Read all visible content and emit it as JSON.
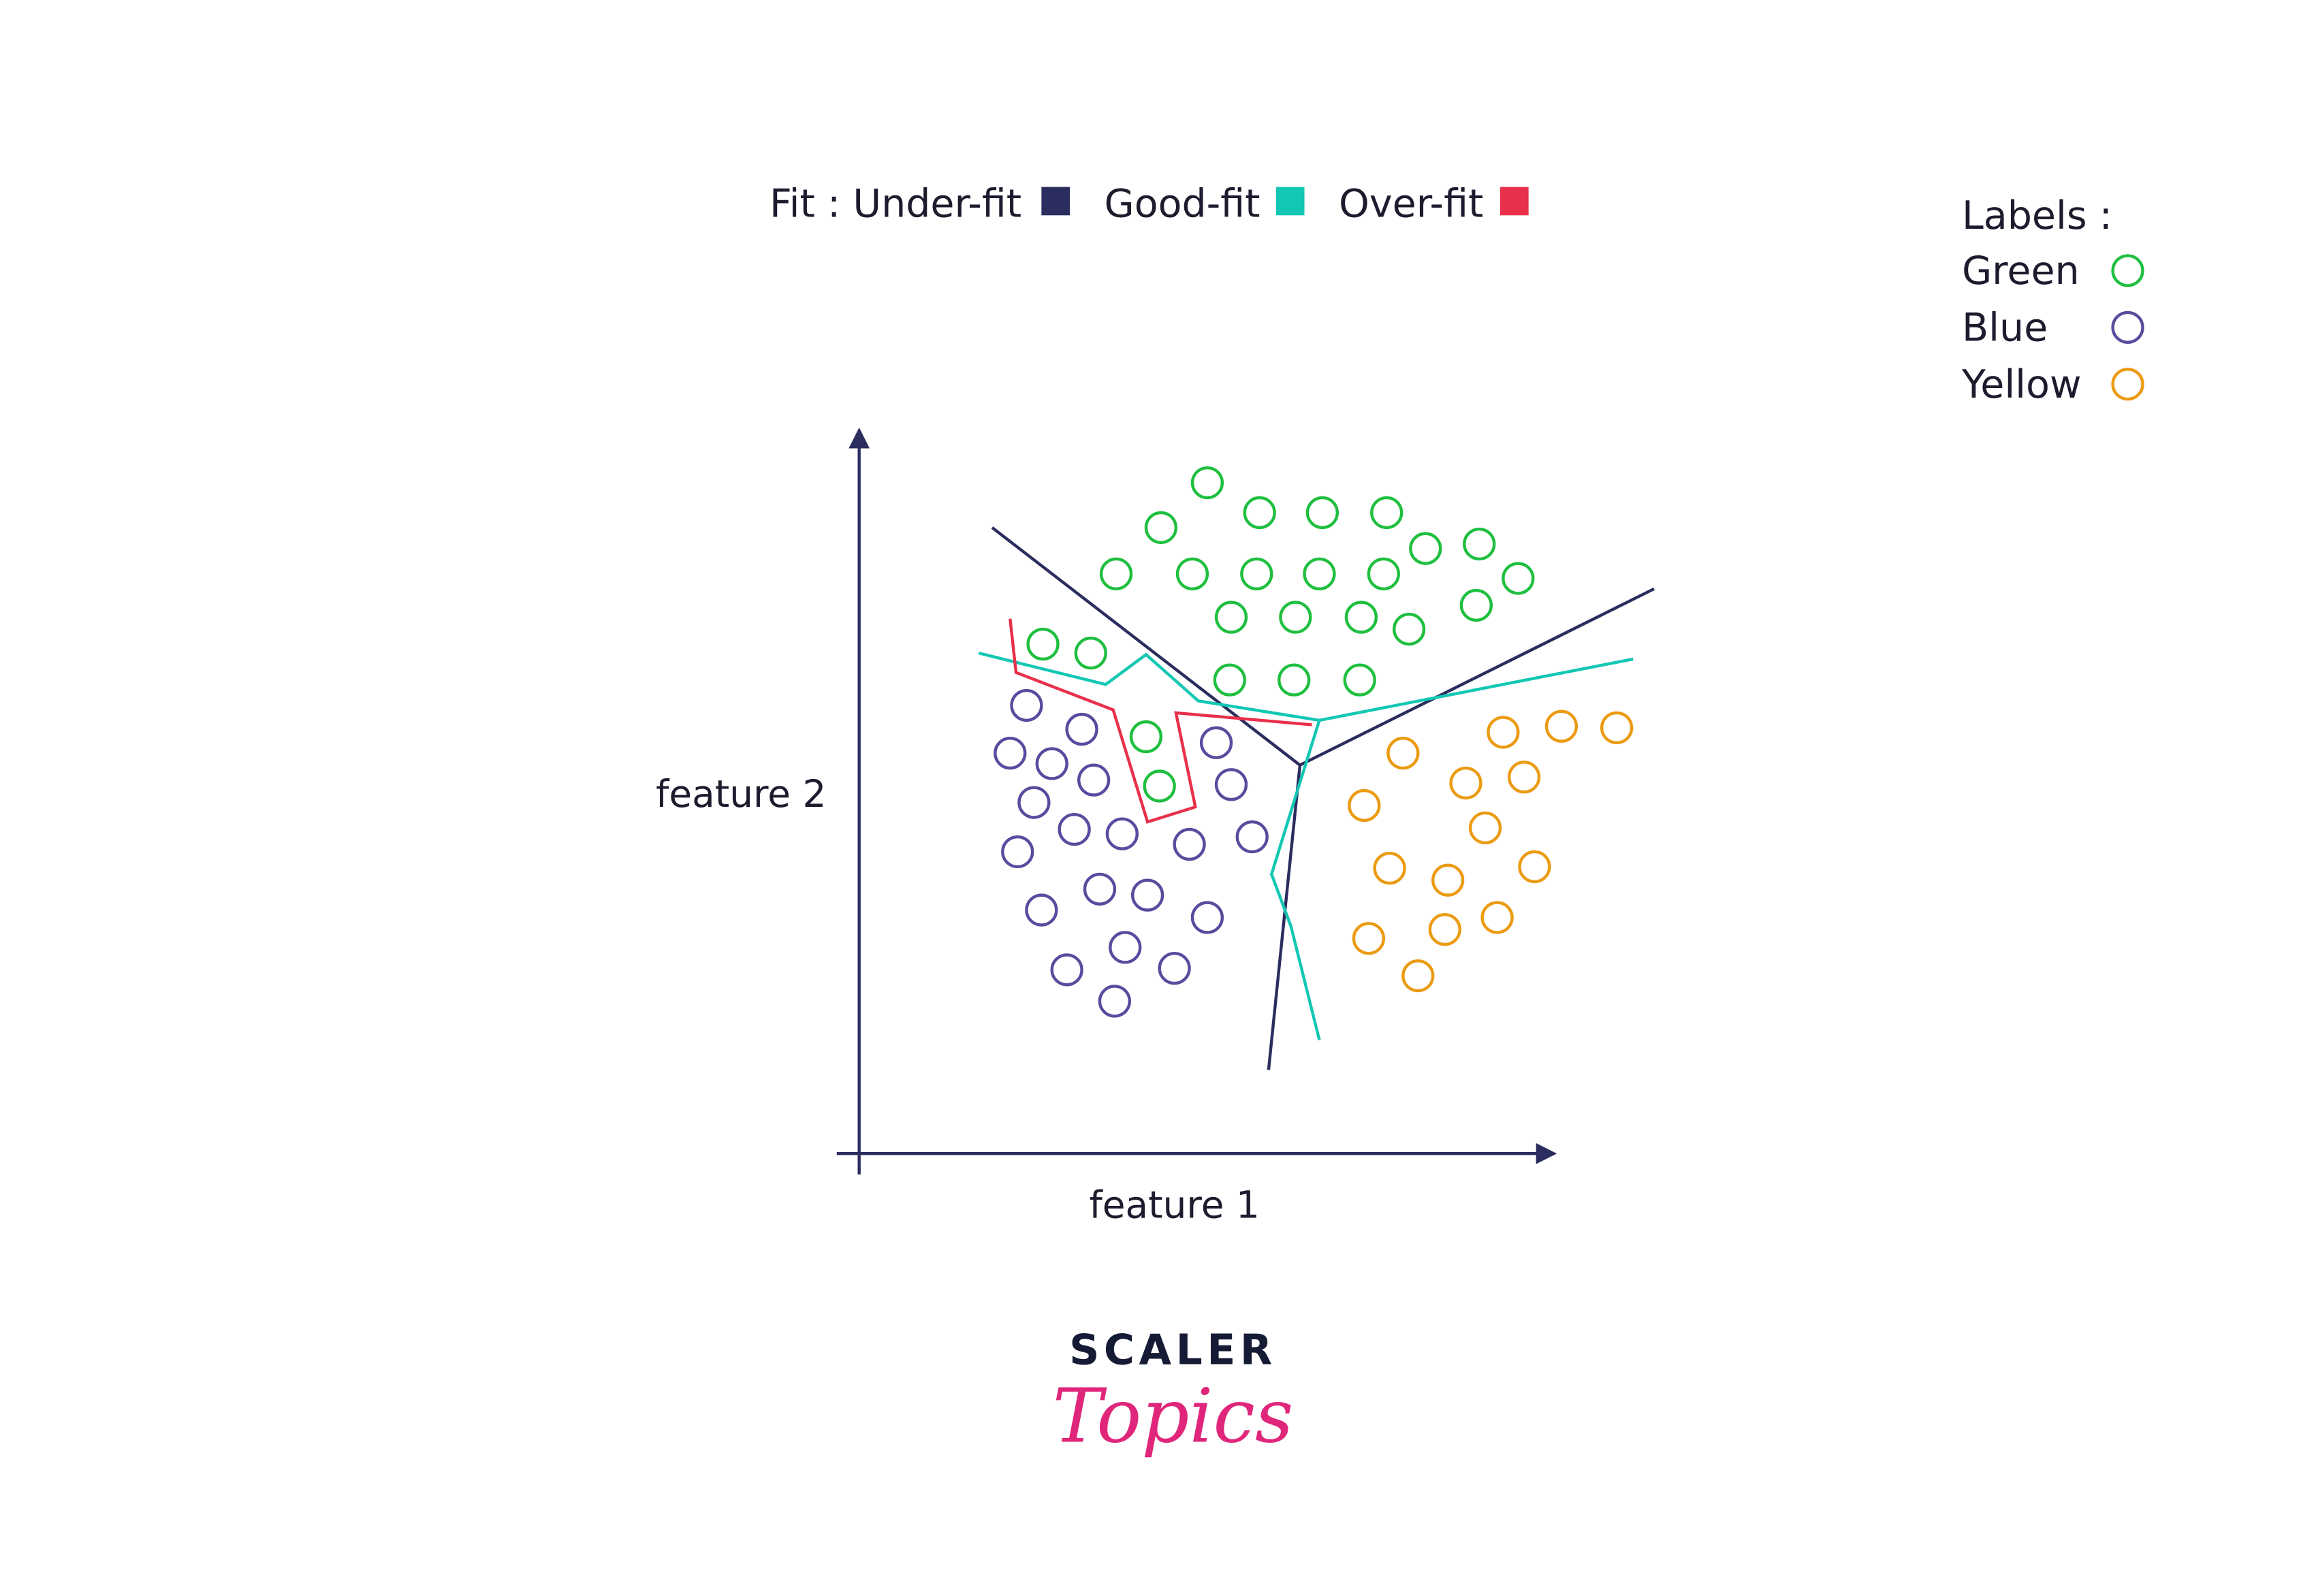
{
  "fit_legend": {
    "prefix": "Fit : Under-fit",
    "items": [
      {
        "label": "",
        "color": "#2b2d5e"
      },
      {
        "label": "Good-fit",
        "color": "#12c7b3"
      },
      {
        "label": "Over-fit",
        "color": "#e8304a"
      }
    ]
  },
  "labels_legend": {
    "title": "Labels :",
    "items": [
      {
        "label": "Green",
        "color": "#1fbf3f"
      },
      {
        "label": "Blue",
        "color": "#5b4a9e"
      },
      {
        "label": "Yellow",
        "color": "#eb9b12"
      }
    ]
  },
  "axes": {
    "x_label": "feature 1",
    "y_label": "feature 2",
    "color": "#2b2d5e"
  },
  "brand": {
    "line1": "SCALER",
    "line2": "Topics",
    "line1_color": "#151a35",
    "line2_color": "#e0267a"
  }
}
